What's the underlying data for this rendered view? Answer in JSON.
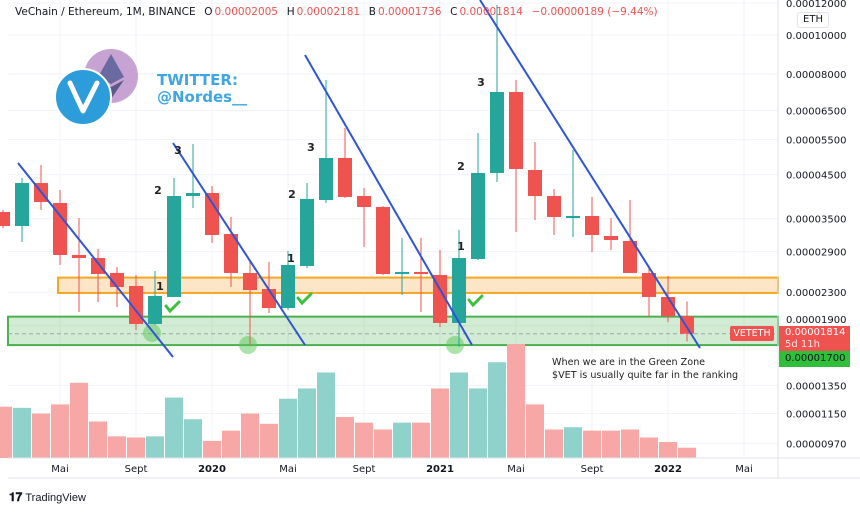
{
  "header": {
    "symbol": "VeChain / Ethereum, 1M, BINANCE",
    "o_label": "O",
    "o_value": "0.00002005",
    "h_label": "H",
    "h_value": "0.00002181",
    "l_label": "B",
    "l_value": "0.00001736",
    "c_label": "C",
    "c_value": "0.00001814",
    "change": "−0.00000189 (−9.44%)"
  },
  "watermark": {
    "line1": "TWITTER:",
    "line2": "@Nordes__"
  },
  "note": {
    "line1": "When we are in the Green Zone",
    "line2": "$VET is usually quite far in the ranking"
  },
  "axis": {
    "currency": "ETH",
    "last_price": "0.00001814",
    "countdown": "5d 11h",
    "green_price": "0.00001700",
    "symbol_tag": "VETETH"
  },
  "branding": {
    "name": "TradingView"
  },
  "colors": {
    "up": "#26a69a",
    "down": "#ef5350",
    "trendline": "#2f55d4",
    "green_zone": "#4caf50",
    "orange_zone": "#f5a623",
    "twitter": "#3ea6e0"
  },
  "annotations": {
    "wave_labels": [
      "1",
      "2",
      "3"
    ]
  },
  "chart_data": {
    "type": "candlestick",
    "yscale": "log",
    "ylim": [
      8.8e-06,
      0.000122
    ],
    "grid": true,
    "y_ticks": [
      "0.00012000",
      "0.00010000",
      "0.00008000",
      "0.00006500",
      "0.00005500",
      "0.00004500",
      "0.00003500",
      "0.00002900",
      "0.00002300",
      "0.00001900",
      "0.00001350",
      "0.00001150",
      "0.00000970"
    ],
    "x_ticks": [
      {
        "label": "Mai",
        "date": "2019-05",
        "bold": false
      },
      {
        "label": "Sept",
        "date": "2019-09",
        "bold": false
      },
      {
        "label": "2020",
        "date": "2020-01",
        "bold": true
      },
      {
        "label": "Mai",
        "date": "2020-05",
        "bold": false
      },
      {
        "label": "Sept",
        "date": "2020-09",
        "bold": false
      },
      {
        "label": "2021",
        "date": "2021-01",
        "bold": true
      },
      {
        "label": "Mai",
        "date": "2021-05",
        "bold": false
      },
      {
        "label": "Sept",
        "date": "2021-09",
        "bold": false
      },
      {
        "label": "2022",
        "date": "2022-01",
        "bold": true
      },
      {
        "label": "Mai",
        "date": "2022-05",
        "bold": false
      }
    ],
    "zones": {
      "green": [
        1.7e-05,
        2e-05
      ],
      "orange": [
        2.29e-05,
        2.5e-05
      ]
    },
    "candles": [
      {
        "date": "2019-02",
        "o": 3.637e-05,
        "h": 3.679e-05,
        "l": 3.319e-05,
        "c": 3.357e-05,
        "vol": 45
      },
      {
        "date": "2019-03",
        "o": 3.357e-05,
        "h": 4.417e-05,
        "l": 3.064e-05,
        "c": 4.292e-05,
        "vol": 44
      },
      {
        "date": "2019-04",
        "o": 4.292e-05,
        "h": 4.757e-05,
        "l": 3.679e-05,
        "c": 3.851e-05,
        "vol": 39
      },
      {
        "date": "2019-05",
        "o": 3.829e-05,
        "h": 4.124e-05,
        "l": 2.687e-05,
        "c": 2.845e-05,
        "vol": 47
      },
      {
        "date": "2019-06",
        "o": 2.845e-05,
        "h": 3.514e-05,
        "l": 2.054e-05,
        "c": 2.796e-05,
        "vol": 66
      },
      {
        "date": "2019-07",
        "o": 2.796e-05,
        "h": 2.944e-05,
        "l": 2.175e-05,
        "c": 2.552e-05,
        "vol": 32
      },
      {
        "date": "2019-08",
        "o": 2.567e-05,
        "h": 2.656e-05,
        "l": 2.114e-05,
        "c": 2.369e-05,
        "vol": 19
      },
      {
        "date": "2019-09",
        "o": 2.383e-05,
        "h": 2.538e-05,
        "l": 1.853e-05,
        "c": 1.918e-05,
        "vol": 18
      },
      {
        "date": "2019-10",
        "o": 1.918e-05,
        "h": 2.596e-05,
        "l": 1.907e-05,
        "c": 2.251e-05,
        "vol": 19
      },
      {
        "date": "2019-11",
        "o": 2.238e-05,
        "h": 4.417e-05,
        "l": 2.238e-05,
        "c": 3.985e-05,
        "vol": 53
      },
      {
        "date": "2019-12",
        "o": 3.985e-05,
        "h": 5.364e-05,
        "l": 3.721e-05,
        "c": 4.054e-05,
        "vol": 34
      },
      {
        "date": "2020-01",
        "o": 4.054e-05,
        "h": 4.219e-05,
        "l": 3.047e-05,
        "c": 3.189e-05,
        "vol": 15
      },
      {
        "date": "2020-02",
        "o": 3.207e-05,
        "h": 3.535e-05,
        "l": 2.369e-05,
        "c": 2.567e-05,
        "vol": 24
      },
      {
        "date": "2020-03",
        "o": 2.567e-05,
        "h": 2.733e-05,
        "l": 1.701e-05,
        "c": 2.329e-05,
        "vol": 39
      },
      {
        "date": "2020-04",
        "o": 2.342e-05,
        "h": 2.733e-05,
        "l": 2.042e-05,
        "c": 2.101e-05,
        "vol": 30
      },
      {
        "date": "2020-05",
        "o": 2.101e-05,
        "h": 2.911e-05,
        "l": 2.078e-05,
        "c": 2.687e-05,
        "vol": 52
      },
      {
        "date": "2020-06",
        "o": 2.671e-05,
        "h": 4.292e-05,
        "l": 2.641e-05,
        "c": 3.918e-05,
        "vol": 61
      },
      {
        "date": "2020-07",
        "o": 3.895e-05,
        "h": 7.733e-05,
        "l": 3.829e-05,
        "c": 4.952e-05,
        "vol": 75
      },
      {
        "date": "2020-08",
        "o": 4.952e-05,
        "h": 5.878e-05,
        "l": 3.94e-05,
        "c": 3.963e-05,
        "vol": 36
      },
      {
        "date": "2020-09",
        "o": 3.985e-05,
        "h": 4.171e-05,
        "l": 2.978e-05,
        "c": 3.742e-05,
        "vol": 31
      },
      {
        "date": "2020-10",
        "o": 3.742e-05,
        "h": 3.764e-05,
        "l": 2.538e-05,
        "c": 2.552e-05,
        "vol": 25
      },
      {
        "date": "2020-11",
        "o": 2.552e-05,
        "h": 3.135e-05,
        "l": 2.264e-05,
        "c": 2.581e-05,
        "vol": 31
      },
      {
        "date": "2020-12",
        "o": 2.581e-05,
        "h": 3.135e-05,
        "l": 2.054e-05,
        "c": 2.552e-05,
        "vol": 31
      },
      {
        "date": "2021-01",
        "o": 2.538e-05,
        "h": 2.927e-05,
        "l": 1.885e-05,
        "c": 1.929e-05,
        "vol": 61
      },
      {
        "date": "2021-02",
        "o": 1.929e-05,
        "h": 3.281e-05,
        "l": 1.681e-05,
        "c": 2.796e-05,
        "vol": 75
      },
      {
        "date": "2021-03",
        "o": 2.78e-05,
        "h": 5.712e-05,
        "l": 2.765e-05,
        "c": 4.545e-05,
        "vol": 61
      },
      {
        "date": "2021-04",
        "o": 4.545e-05,
        "h": 0.0001187,
        "l": 4.317e-05,
        "c": 7.22e-05,
        "vol": 84
      },
      {
        "date": "2021-05",
        "o": 7.22e-05,
        "h": 7.733e-05,
        "l": 3.244e-05,
        "c": 4.65e-05,
        "vol": 100
      },
      {
        "date": "2021-06",
        "o": 4.624e-05,
        "h": 5.426e-05,
        "l": 3.475e-05,
        "c": 3.985e-05,
        "vol": 47
      },
      {
        "date": "2021-07",
        "o": 3.985e-05,
        "h": 4.148e-05,
        "l": 3.189e-05,
        "c": 3.535e-05,
        "vol": 25
      },
      {
        "date": "2021-08",
        "o": 3.514e-05,
        "h": 5.184e-05,
        "l": 3.153e-05,
        "c": 3.555e-05,
        "vol": 27
      },
      {
        "date": "2021-09",
        "o": 3.555e-05,
        "h": 3.963e-05,
        "l": 2.894e-05,
        "c": 3.189e-05,
        "vol": 24
      },
      {
        "date": "2021-10",
        "o": 3.171e-05,
        "h": 3.514e-05,
        "l": 2.927e-05,
        "c": 3.099e-05,
        "vol": 24
      },
      {
        "date": "2021-11",
        "o": 3.082e-05,
        "h": 3.895e-05,
        "l": 2.567e-05,
        "c": 2.567e-05,
        "vol": 25
      },
      {
        "date": "2021-12",
        "o": 2.567e-05,
        "h": 2.656e-05,
        "l": 1.996e-05,
        "c": 2.238e-05,
        "vol": 18
      },
      {
        "date": "2022-01",
        "o": 2.238e-05,
        "h": 2.523e-05,
        "l": 1.94e-05,
        "c": 2.005e-05,
        "vol": 14
      },
      {
        "date": "2022-02",
        "o": 2.005e-05,
        "h": 2.181e-05,
        "l": 1.736e-05,
        "c": 1.814e-05,
        "vol": 9
      }
    ]
  }
}
